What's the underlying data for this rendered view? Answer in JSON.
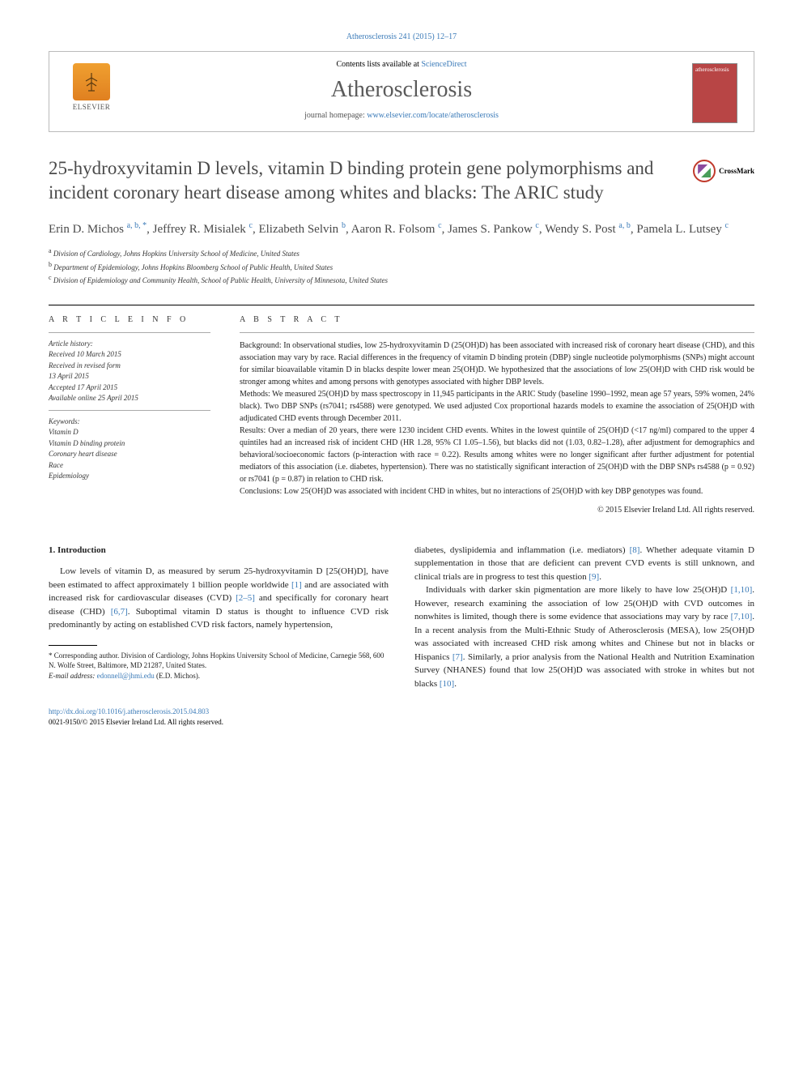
{
  "citation": "Atherosclerosis 241 (2015) 12–17",
  "header": {
    "contents_prefix": "Contents lists available at ",
    "contents_link": "ScienceDirect",
    "journal": "Atherosclerosis",
    "homepage_prefix": "journal homepage: ",
    "homepage_url": "www.elsevier.com/locate/atherosclerosis",
    "publisher": "ELSEVIER",
    "cover_label": "atherosclerosis"
  },
  "crossmark": "CrossMark",
  "title": "25-hydroxyvitamin D levels, vitamin D binding protein gene polymorphisms and incident coronary heart disease among whites and blacks: The ARIC study",
  "authors_html": "Erin D. Michos <sup>a, b, *</sup>, Jeffrey R. Misialek <sup>c</sup>, Elizabeth Selvin <sup>b</sup>, Aaron R. Folsom <sup>c</sup>, James S. Pankow <sup>c</sup>, Wendy S. Post <sup>a, b</sup>, Pamela L. Lutsey <sup>c</sup>",
  "affiliations": [
    "a Division of Cardiology, Johns Hopkins University School of Medicine, United States",
    "b Department of Epidemiology, Johns Hopkins Bloomberg School of Public Health, United States",
    "c Division of Epidemiology and Community Health, School of Public Health, University of Minnesota, United States"
  ],
  "article_info": {
    "heading": "A R T I C L E   I N F O",
    "history_label": "Article history:",
    "history": [
      "Received 10 March 2015",
      "Received in revised form",
      "13 April 2015",
      "Accepted 17 April 2015",
      "Available online 25 April 2015"
    ],
    "keywords_label": "Keywords:",
    "keywords": [
      "Vitamin D",
      "Vitamin D binding protein",
      "Coronary heart disease",
      "Race",
      "Epidemiology"
    ]
  },
  "abstract": {
    "heading": "A B S T R A C T",
    "background": "Background: In observational studies, low 25-hydroxyvitamin D (25(OH)D) has been associated with increased risk of coronary heart disease (CHD), and this association may vary by race. Racial differences in the frequency of vitamin D binding protein (DBP) single nucleotide polymorphisms (SNPs) might account for similar bioavailable vitamin D in blacks despite lower mean 25(OH)D. We hypothesized that the associations of low 25(OH)D with CHD risk would be stronger among whites and among persons with genotypes associated with higher DBP levels.",
    "methods": "Methods: We measured 25(OH)D by mass spectroscopy in 11,945 participants in the ARIC Study (baseline 1990–1992, mean age 57 years, 59% women, 24% black). Two DBP SNPs (rs7041; rs4588) were genotyped. We used adjusted Cox proportional hazards models to examine the association of 25(OH)D with adjudicated CHD events through December 2011.",
    "results": "Results: Over a median of 20 years, there were 1230 incident CHD events. Whites in the lowest quintile of 25(OH)D (<17 ng/ml) compared to the upper 4 quintiles had an increased risk of incident CHD (HR 1.28, 95% CI 1.05–1.56), but blacks did not (1.03, 0.82–1.28), after adjustment for demographics and behavioral/socioeconomic factors (p-interaction with race = 0.22). Results among whites were no longer significant after further adjustment for potential mediators of this association (i.e. diabetes, hypertension). There was no statistically significant interaction of 25(OH)D with the DBP SNPs rs4588 (p = 0.92) or rs7041 (p = 0.87) in relation to CHD risk.",
    "conclusions": "Conclusions: Low 25(OH)D was associated with incident CHD in whites, but no interactions of 25(OH)D with key DBP genotypes was found.",
    "copyright": "© 2015 Elsevier Ireland Ltd. All rights reserved."
  },
  "body": {
    "section_heading": "1. Introduction",
    "col1_p1_a": "Low levels of vitamin D, as measured by serum 25-hydroxyvitamin D [25(OH)D], have been estimated to affect approximately 1 billion people worldwide ",
    "ref1": "[1]",
    "col1_p1_b": " and are associated with increased risk for cardiovascular diseases (CVD) ",
    "ref2_5": "[2–5]",
    "col1_p1_c": " and specifically for coronary heart disease (CHD) ",
    "ref6_7": "[6,7]",
    "col1_p1_d": ". Suboptimal vitamin D status is thought to influence CVD risk predominantly by acting on established CVD risk factors, namely hypertension,",
    "col2_p1_a": "diabetes, dyslipidemia and inflammation (i.e. mediators) ",
    "ref8": "[8]",
    "col2_p1_b": ". Whether adequate vitamin D supplementation in those that are deficient can prevent CVD events is still unknown, and clinical trials are in progress to test this question ",
    "ref9": "[9]",
    "col2_p1_c": ".",
    "col2_p2_a": "Individuals with darker skin pigmentation are more likely to have low 25(OH)D ",
    "ref1_10": "[1,10]",
    "col2_p2_b": ". However, research examining the association of low 25(OH)D with CVD outcomes in nonwhites is limited, though there is some evidence that associations may vary by race ",
    "ref7_10": "[7,10]",
    "col2_p2_c": ". In a recent analysis from the Multi-Ethnic Study of Atherosclerosis (MESA), low 25(OH)D was associated with increased CHD risk among whites and Chinese but not in blacks or Hispanics ",
    "ref7": "[7]",
    "col2_p2_d": ". Similarly, a prior analysis from the National Health and Nutrition Examination Survey (NHANES) found that low 25(OH)D was associated with stroke in whites but not blacks ",
    "ref10": "[10]",
    "col2_p2_e": "."
  },
  "footnote": {
    "corresponding": "* Corresponding author. Division of Cardiology, Johns Hopkins University School of Medicine, Carnegie 568, 600 N. Wolfe Street, Baltimore, MD 21287, United States.",
    "email_label": "E-mail address: ",
    "email": "edonnell@jhmi.edu",
    "email_suffix": " (E.D. Michos)."
  },
  "footer": {
    "doi": "http://dx.doi.org/10.1016/j.atherosclerosis.2015.04.803",
    "issn": "0021-9150/© 2015 Elsevier Ireland Ltd. All rights reserved."
  }
}
